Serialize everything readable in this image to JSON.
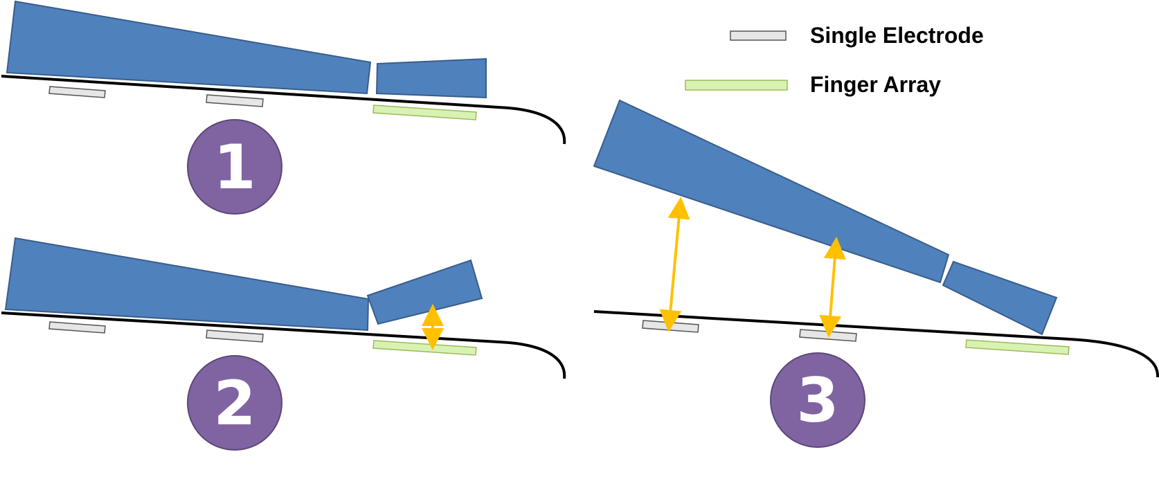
{
  "legend": {
    "single_electrode_label": "Single Electrode",
    "finger_array_label": "Finger Array"
  },
  "steps": [
    {
      "number": "1"
    },
    {
      "number": "2"
    },
    {
      "number": "3"
    }
  ],
  "colors": {
    "plate": "#4f81bd",
    "plate_stroke": "#385d8a",
    "electrode_fill": "#e6e6e6",
    "finger_array_fill": "#d8f2b4",
    "finger_array_stroke": "#9bbb59",
    "badge_fill": "#8064a2",
    "badge_stroke": "#5c4776",
    "arrow": "#ffc000",
    "substrate": "#000000"
  }
}
